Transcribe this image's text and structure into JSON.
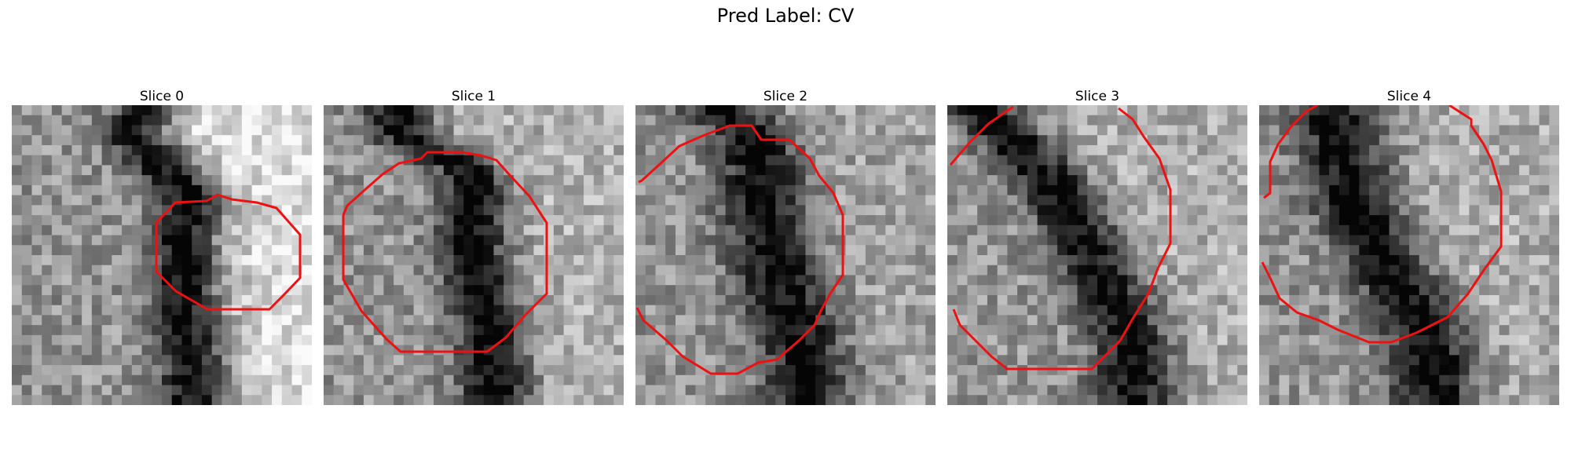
{
  "figure": {
    "suptitle": "Pred Label: CV"
  },
  "colors": {
    "contour": "#ee1111",
    "background": "#ffffff"
  },
  "panels": [
    {
      "title": "Slice 0"
    },
    {
      "title": "Slice 1"
    },
    {
      "title": "Slice 2"
    },
    {
      "title": "Slice 3"
    },
    {
      "title": "Slice 4"
    }
  ]
}
